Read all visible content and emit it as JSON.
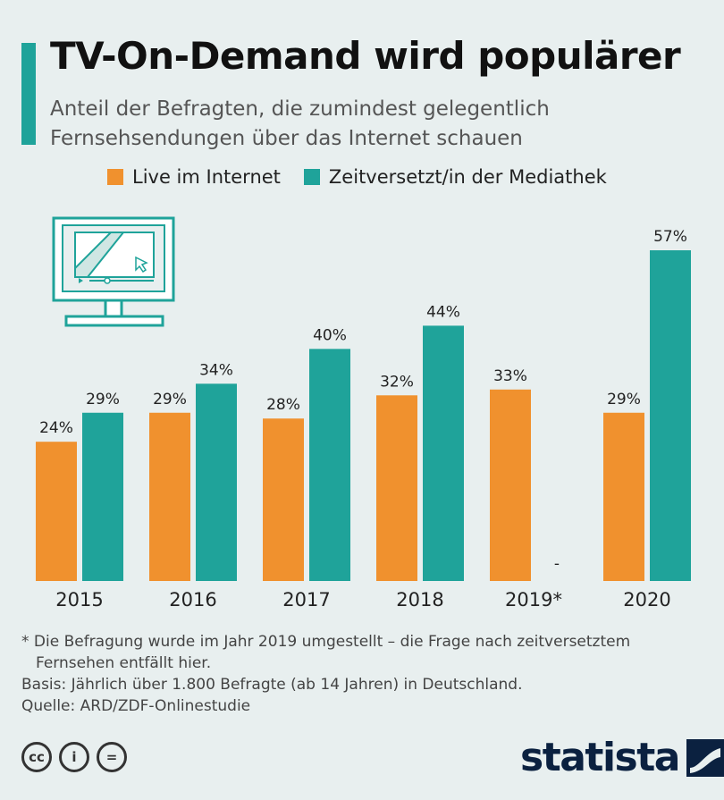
{
  "header": {
    "title": "TV-On-Demand wird populärer",
    "subtitle": "Anteil der Befragten, die zumindest gelegentlich Fernsehsendungen über das Internet schauen"
  },
  "legend": {
    "live": "Live im Internet",
    "delayed": "Zeitversetzt/in der Mediathek"
  },
  "colors": {
    "live": "#f0912e",
    "delayed": "#1fa39a",
    "accent": "#1fa39a",
    "brand": "#0b2140"
  },
  "chart_data": {
    "type": "bar",
    "categories": [
      "2015",
      "2016",
      "2017",
      "2018",
      "2019*",
      "2020"
    ],
    "series": [
      {
        "name": "Live im Internet",
        "values": [
          24,
          29,
          28,
          32,
          33,
          29
        ]
      },
      {
        "name": "Zeitversetzt/in der Mediathek",
        "values": [
          29,
          34,
          40,
          44,
          null,
          57
        ]
      }
    ],
    "value_labels": [
      [
        "24%",
        "29%",
        "28%",
        "32%",
        "33%",
        "29%"
      ],
      [
        "29%",
        "34%",
        "40%",
        "44%",
        "-",
        "57%"
      ]
    ],
    "ylim": [
      0,
      57
    ],
    "grid": false
  },
  "footnotes": {
    "note_line1": "* Die Befragung wurde im Jahr 2019 umgestellt – die Frage nach zeitversetztem",
    "note_line2": "Fernsehen entfällt hier.",
    "basis": "Basis: Jährlich über 1.800 Befragte (ab 14 Jahren) in Deutschland.",
    "source": "Quelle: ARD/ZDF-Onlinestudie"
  },
  "license_icons": [
    {
      "icon": "cc-icon",
      "text": "cc"
    },
    {
      "icon": "attribution-icon",
      "text": "i"
    },
    {
      "icon": "no-derivatives-icon",
      "text": "="
    }
  ],
  "brand": {
    "name": "statista"
  }
}
